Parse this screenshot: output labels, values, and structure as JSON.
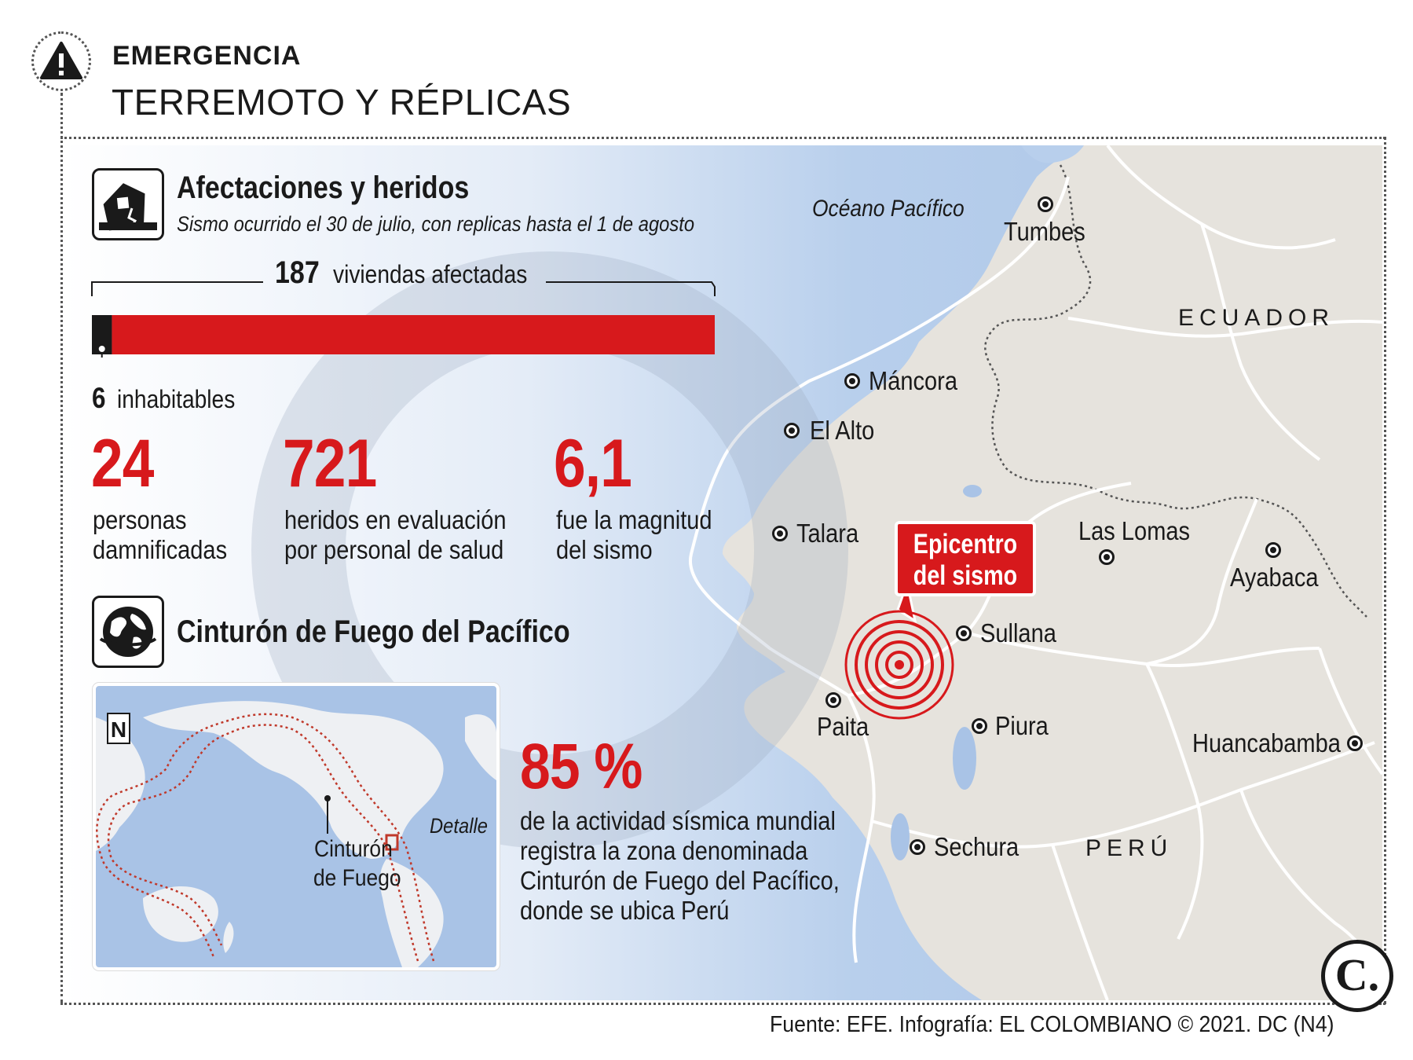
{
  "header": {
    "kicker": "EMERGENCIA",
    "title": "TERREMOTO Y RÉPLICAS"
  },
  "damage": {
    "title": "Afectaciones y heridos",
    "subtitle": "Sismo ocurrido el 30 de julio, con replicas hasta el 1 de agosto",
    "homes_number": "187",
    "homes_label": "viviendas afectadas",
    "uninhabitable_number": "6",
    "uninhabitable_label": "inhabitables",
    "homes_total": 187,
    "uninhabitable_total": 6
  },
  "stats": [
    {
      "value": "24",
      "line1": "personas",
      "line2": "damnificadas"
    },
    {
      "value": "721",
      "line1": "heridos en evaluación",
      "line2": "por personal de salud"
    },
    {
      "value": "6,1",
      "line1": "fue la magnitud",
      "line2": "del sismo"
    }
  ],
  "ring": {
    "title": "Cinturón de Fuego del Pacífico",
    "percent": "85 %",
    "desc": [
      "de la actividad sísmica mundial",
      "registra la zona denominada",
      "Cinturón de Fuego del Pacífico,",
      "donde se ubica Perú"
    ],
    "inset_north": "N",
    "inset_ring_label": [
      "Cinturón",
      "de Fuego"
    ],
    "inset_detail": "Detalle"
  },
  "map": {
    "ocean": "Océano Pacífico",
    "countries": {
      "ecuador": "ECUADOR",
      "peru": "PERÚ"
    },
    "cities": {
      "tumbes": "Tumbes",
      "mancora": "Máncora",
      "elalto": "El Alto",
      "talara": "Talara",
      "laslomas": "Las Lomas",
      "ayabaca": "Ayabaca",
      "sullana": "Sullana",
      "paita": "Paita",
      "piura": "Piura",
      "huancabamba": "Huancabamba",
      "sechura": "Sechura"
    },
    "epicenter": [
      "Epicentro",
      "del sismo"
    ]
  },
  "footer": {
    "source": "Fuente: EFE. Infografía: EL COLOMBIANO © 2021. DC (N4)",
    "logo": "C."
  },
  "colors": {
    "accent_red": "#d7191c",
    "land": "#e6e3dd",
    "sea": "#a9c3e6"
  }
}
